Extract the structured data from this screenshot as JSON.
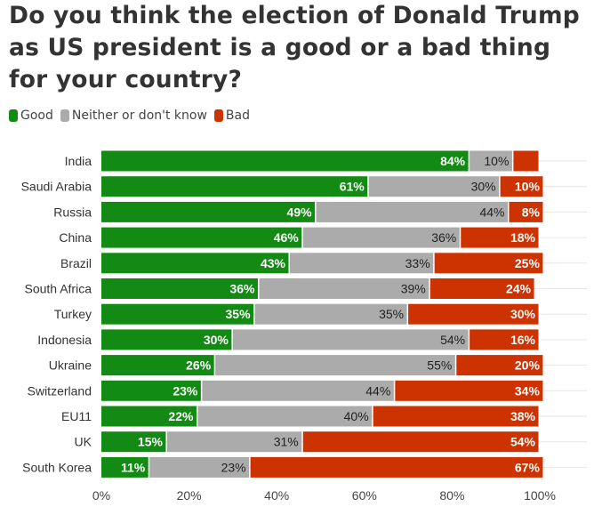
{
  "chart_data": {
    "type": "bar",
    "orientation": "horizontal",
    "stacked": true,
    "title": "Do you think the election of Donald Trump as US president is a good or a bad thing for your country?",
    "categories": [
      "India",
      "Saudi Arabia",
      "Russia",
      "China",
      "Brazil",
      "South Africa",
      "Turkey",
      "Indonesia",
      "Ukraine",
      "Switzerland",
      "EU11",
      "UK",
      "South Korea"
    ],
    "series": [
      {
        "name": "Good",
        "color": "#138a13",
        "values": [
          84,
          61,
          49,
          46,
          43,
          36,
          35,
          30,
          26,
          23,
          22,
          15,
          11
        ]
      },
      {
        "name": "Neither or don't know",
        "color": "#ababab",
        "values": [
          10,
          30,
          44,
          36,
          33,
          39,
          35,
          54,
          55,
          44,
          40,
          31,
          23
        ]
      },
      {
        "name": "Bad",
        "color": "#cc3300",
        "values": [
          6,
          10,
          8,
          18,
          25,
          24,
          30,
          16,
          20,
          34,
          38,
          54,
          67
        ]
      }
    ],
    "value_suffix": "%",
    "xlim": [
      0,
      100
    ],
    "xticks": [
      "0%",
      "20%",
      "40%",
      "60%",
      "80%",
      "100%"
    ],
    "legend": "top-left",
    "grid": true
  }
}
